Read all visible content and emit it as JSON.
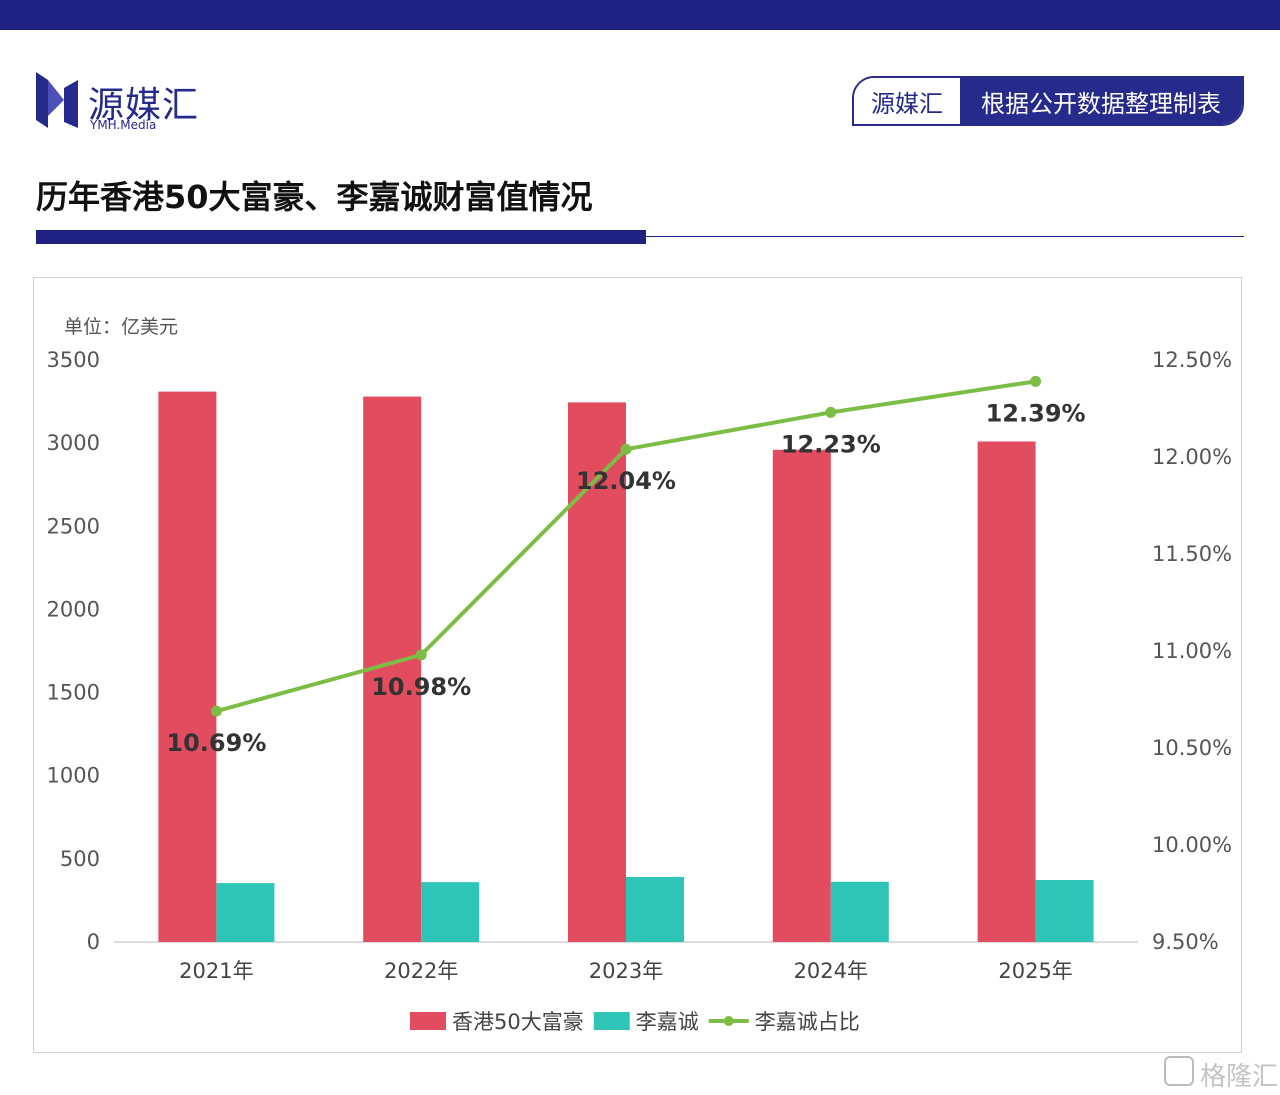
{
  "brand": {
    "name": "源媒汇",
    "sub": "YMH.Media"
  },
  "source": {
    "left": "源媒汇",
    "right": "根据公开数据整理制表"
  },
  "title": "历年香港50大富豪、李嘉诚财富值情况",
  "unit_label": "单位：亿美元",
  "watermark": "格隆汇",
  "colors": {
    "navy": "#1e2082",
    "bar_top50": "#e24c5f",
    "bar_li": "#2ec4b6",
    "line": "#7bbd45"
  },
  "chart_data": {
    "type": "bar",
    "categories": [
      "2021年",
      "2022年",
      "2023年",
      "2024年",
      "2025年"
    ],
    "series": [
      {
        "name": "香港50大富豪",
        "type": "bar",
        "axis": "left",
        "values": [
          3310,
          3280,
          3245,
          2960,
          3010
        ]
      },
      {
        "name": "李嘉诚",
        "type": "bar",
        "axis": "left",
        "values": [
          354,
          360,
          391,
          362,
          373
        ]
      },
      {
        "name": "李嘉诚占比",
        "type": "line",
        "axis": "right",
        "values": [
          10.69,
          10.98,
          12.04,
          12.23,
          12.39
        ],
        "labels": [
          "10.69%",
          "10.98%",
          "12.04%",
          "12.23%",
          "12.39%"
        ]
      }
    ],
    "y_left": {
      "min": 0,
      "max": 3500,
      "ticks": [
        "0",
        "500",
        "1000",
        "1500",
        "2000",
        "2500",
        "3000",
        "3500"
      ]
    },
    "y_right": {
      "min": 9.5,
      "max": 12.5,
      "ticks": [
        "9.50%",
        "10.00%",
        "10.50%",
        "11.00%",
        "11.50%",
        "12.00%",
        "12.50%"
      ]
    },
    "legend": "bottom",
    "grid": false
  }
}
